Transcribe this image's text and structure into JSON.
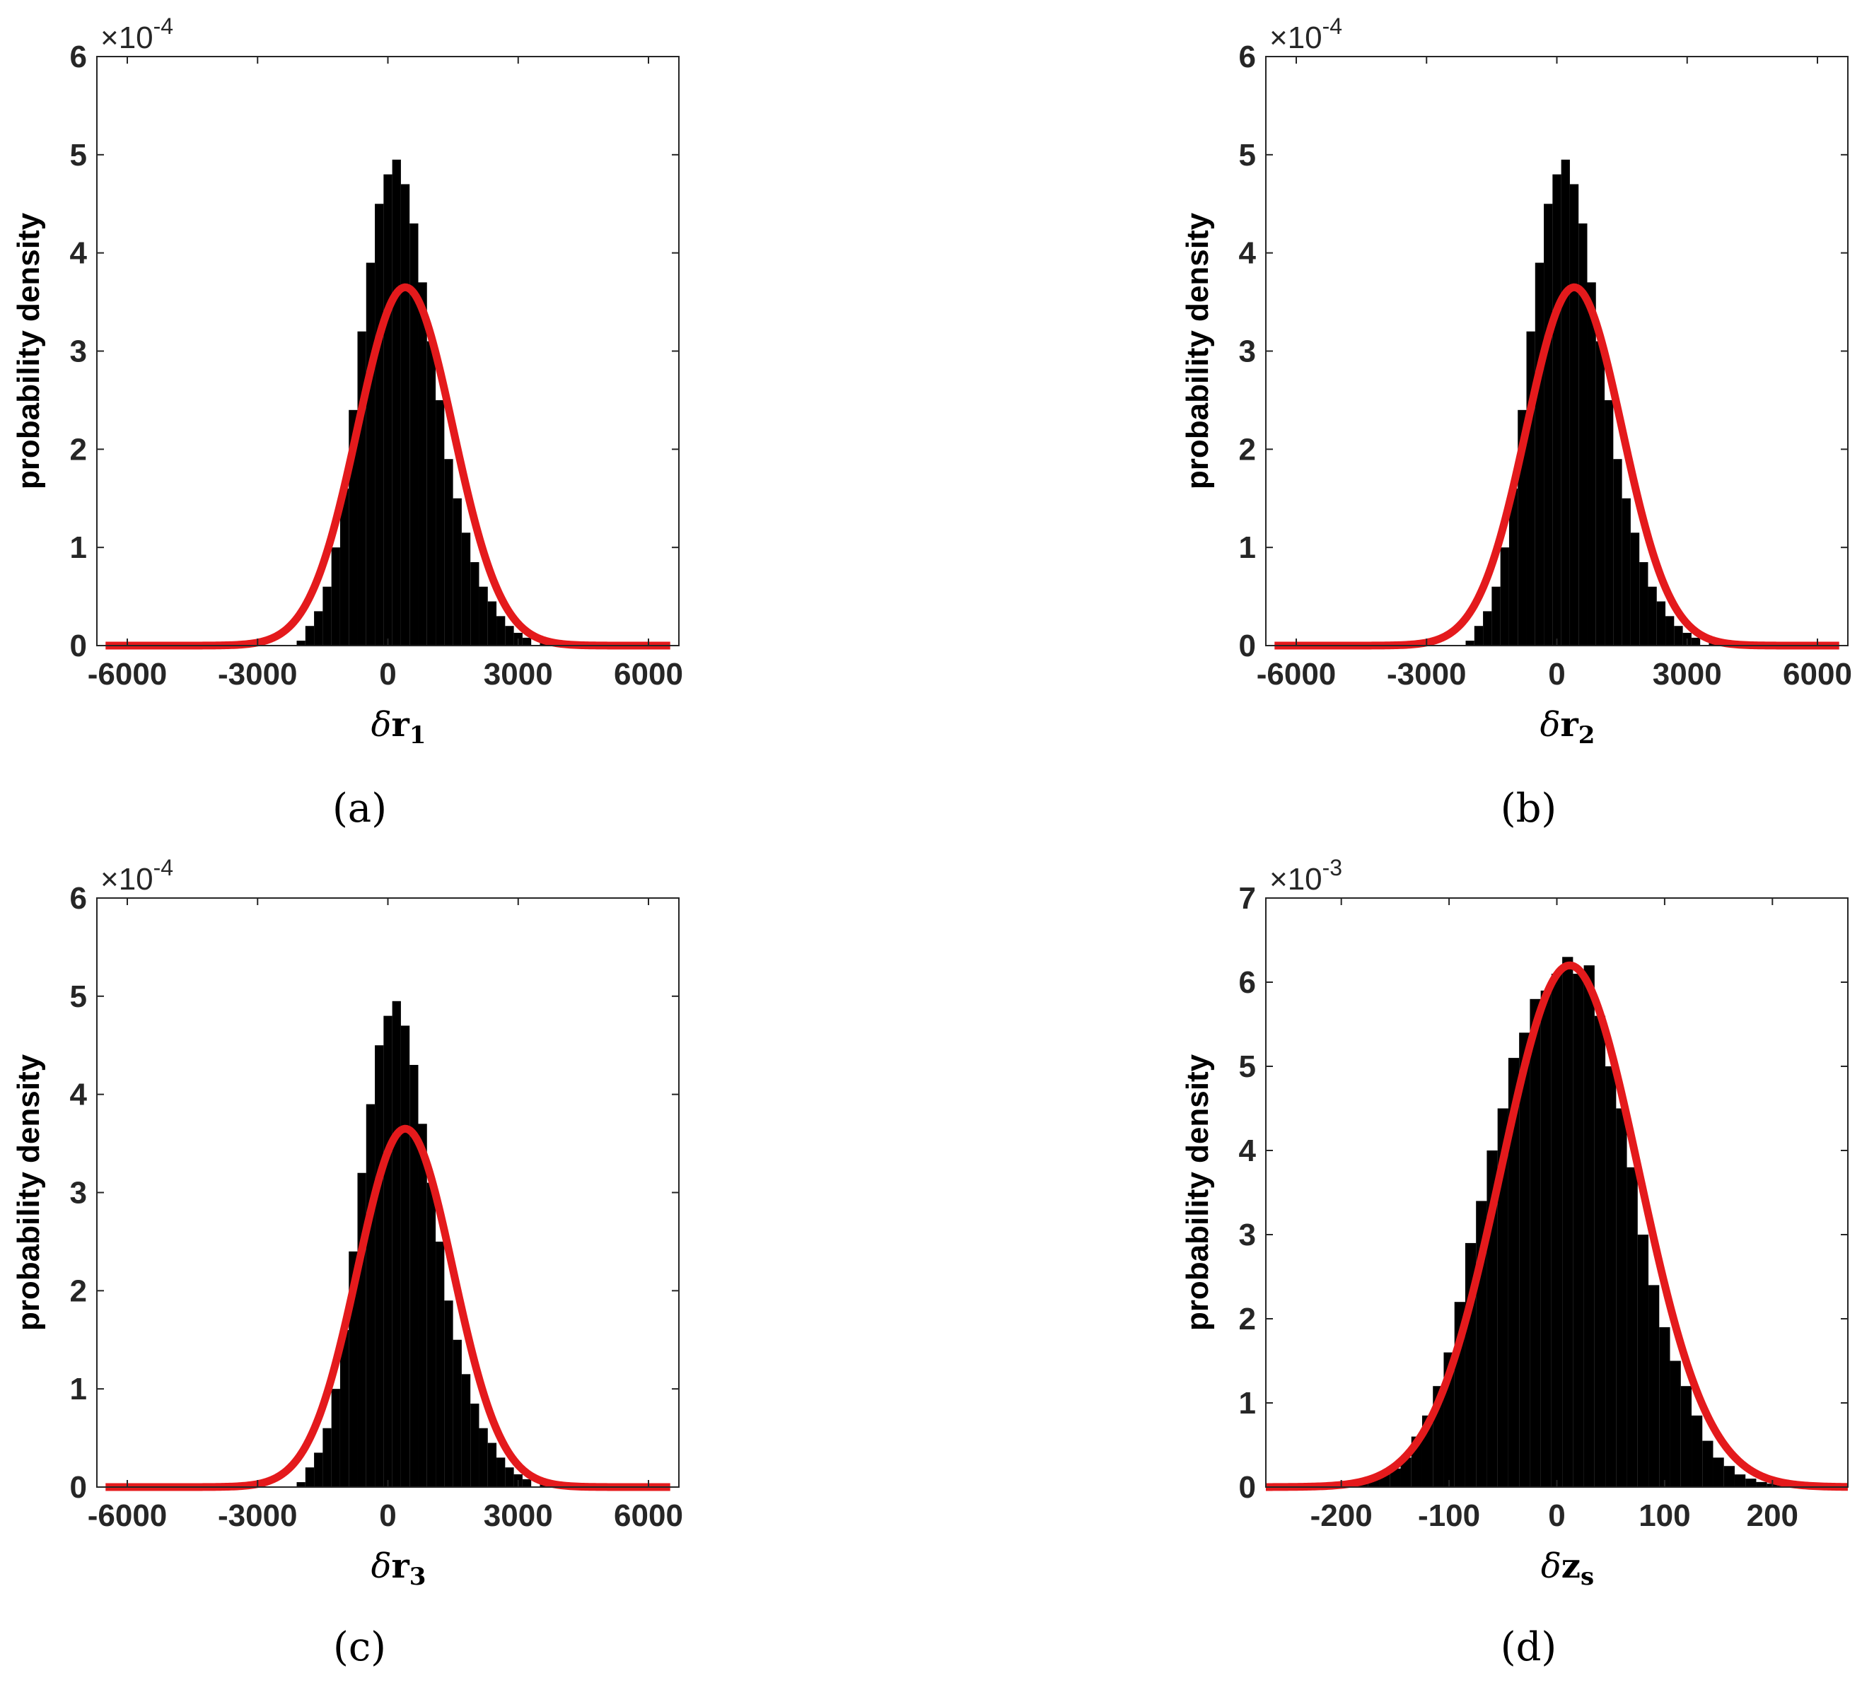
{
  "chart_data": [
    {
      "type": "bar",
      "panel_label": "(a)",
      "ylabel": "probability density",
      "xlabel_main": "δ",
      "xlabel_symbol": "r",
      "xlabel_sub": "1",
      "y_multiplier_base": "×10",
      "y_multiplier_exp": "-4",
      "xlim": [
        -6700,
        6700
      ],
      "ylim": [
        0,
        6
      ],
      "xticks": [
        -6000,
        -3000,
        0,
        3000,
        6000
      ],
      "xtick_labels": [
        "-6000",
        "-3000",
        "0",
        "3000",
        "6000"
      ],
      "yticks": [
        0,
        1,
        2,
        3,
        4,
        5,
        6
      ],
      "ytick_labels": [
        "0",
        "1",
        "2",
        "3",
        "4",
        "5",
        "6"
      ],
      "histogram": {
        "color": "#000000",
        "bins": [
          [
            -2000,
            0.05
          ],
          [
            -1800,
            0.2
          ],
          [
            -1600,
            0.35
          ],
          [
            -1400,
            0.6
          ],
          [
            -1200,
            1.0
          ],
          [
            -1000,
            1.6
          ],
          [
            -800,
            2.4
          ],
          [
            -600,
            3.2
          ],
          [
            -400,
            3.9
          ],
          [
            -200,
            4.5
          ],
          [
            0,
            4.8
          ],
          [
            200,
            4.95
          ],
          [
            400,
            4.7
          ],
          [
            600,
            4.3
          ],
          [
            800,
            3.7
          ],
          [
            1000,
            3.1
          ],
          [
            1200,
            2.5
          ],
          [
            1400,
            1.9
          ],
          [
            1600,
            1.5
          ],
          [
            1800,
            1.15
          ],
          [
            2000,
            0.85
          ],
          [
            2200,
            0.6
          ],
          [
            2400,
            0.45
          ],
          [
            2600,
            0.3
          ],
          [
            2800,
            0.2
          ],
          [
            3000,
            0.13
          ],
          [
            3200,
            0.08
          ],
          [
            3600,
            0.04
          ],
          [
            4000,
            0.02
          ],
          [
            4800,
            0.01
          ]
        ],
        "bin_width": 200
      },
      "fit": {
        "color": "#e41a1c",
        "mean": 400,
        "std": 1100,
        "amplitude": 3.65,
        "x_range": [
          -6500,
          6500
        ]
      }
    },
    {
      "type": "bar",
      "panel_label": "(b)",
      "ylabel": "probability density",
      "xlabel_main": "δ",
      "xlabel_symbol": "r",
      "xlabel_sub": "2",
      "y_multiplier_base": "×10",
      "y_multiplier_exp": "-4",
      "xlim": [
        -6700,
        6700
      ],
      "ylim": [
        0,
        6
      ],
      "xticks": [
        -6000,
        -3000,
        0,
        3000,
        6000
      ],
      "xtick_labels": [
        "-6000",
        "-3000",
        "0",
        "3000",
        "6000"
      ],
      "yticks": [
        0,
        1,
        2,
        3,
        4,
        5,
        6
      ],
      "ytick_labels": [
        "0",
        "1",
        "2",
        "3",
        "4",
        "5",
        "6"
      ],
      "histogram": {
        "color": "#000000",
        "bins": [
          [
            -2000,
            0.05
          ],
          [
            -1800,
            0.2
          ],
          [
            -1600,
            0.35
          ],
          [
            -1400,
            0.6
          ],
          [
            -1200,
            1.0
          ],
          [
            -1000,
            1.6
          ],
          [
            -800,
            2.4
          ],
          [
            -600,
            3.2
          ],
          [
            -400,
            3.9
          ],
          [
            -200,
            4.5
          ],
          [
            0,
            4.8
          ],
          [
            200,
            4.95
          ],
          [
            400,
            4.7
          ],
          [
            600,
            4.3
          ],
          [
            800,
            3.7
          ],
          [
            1000,
            3.1
          ],
          [
            1200,
            2.5
          ],
          [
            1400,
            1.9
          ],
          [
            1600,
            1.5
          ],
          [
            1800,
            1.15
          ],
          [
            2000,
            0.85
          ],
          [
            2200,
            0.6
          ],
          [
            2400,
            0.45
          ],
          [
            2600,
            0.3
          ],
          [
            2800,
            0.2
          ],
          [
            3000,
            0.13
          ],
          [
            3200,
            0.08
          ],
          [
            3600,
            0.04
          ],
          [
            4000,
            0.02
          ],
          [
            4800,
            0.01
          ]
        ],
        "bin_width": 200
      },
      "fit": {
        "color": "#e41a1c",
        "mean": 400,
        "std": 1100,
        "amplitude": 3.65,
        "x_range": [
          -6500,
          6500
        ]
      }
    },
    {
      "type": "bar",
      "panel_label": "(c)",
      "ylabel": "probability density",
      "xlabel_main": "δ",
      "xlabel_symbol": "r",
      "xlabel_sub": "3",
      "y_multiplier_base": "×10",
      "y_multiplier_exp": "-4",
      "xlim": [
        -6700,
        6700
      ],
      "ylim": [
        0,
        6
      ],
      "xticks": [
        -6000,
        -3000,
        0,
        3000,
        6000
      ],
      "xtick_labels": [
        "-6000",
        "-3000",
        "0",
        "3000",
        "6000"
      ],
      "yticks": [
        0,
        1,
        2,
        3,
        4,
        5,
        6
      ],
      "ytick_labels": [
        "0",
        "1",
        "2",
        "3",
        "4",
        "5",
        "6"
      ],
      "histogram": {
        "color": "#000000",
        "bins": [
          [
            -2000,
            0.05
          ],
          [
            -1800,
            0.2
          ],
          [
            -1600,
            0.35
          ],
          [
            -1400,
            0.6
          ],
          [
            -1200,
            1.0
          ],
          [
            -1000,
            1.6
          ],
          [
            -800,
            2.4
          ],
          [
            -600,
            3.2
          ],
          [
            -400,
            3.9
          ],
          [
            -200,
            4.5
          ],
          [
            0,
            4.8
          ],
          [
            200,
            4.95
          ],
          [
            400,
            4.7
          ],
          [
            600,
            4.3
          ],
          [
            800,
            3.7
          ],
          [
            1000,
            3.1
          ],
          [
            1200,
            2.5
          ],
          [
            1400,
            1.9
          ],
          [
            1600,
            1.5
          ],
          [
            1800,
            1.15
          ],
          [
            2000,
            0.85
          ],
          [
            2200,
            0.6
          ],
          [
            2400,
            0.45
          ],
          [
            2600,
            0.3
          ],
          [
            2800,
            0.2
          ],
          [
            3000,
            0.13
          ],
          [
            3200,
            0.08
          ],
          [
            3600,
            0.04
          ],
          [
            4000,
            0.02
          ],
          [
            4800,
            0.01
          ]
        ],
        "bin_width": 200
      },
      "fit": {
        "color": "#e41a1c",
        "mean": 400,
        "std": 1100,
        "amplitude": 3.65,
        "x_range": [
          -6500,
          6500
        ]
      }
    },
    {
      "type": "bar",
      "panel_label": "(d)",
      "ylabel": "probability density",
      "xlabel_main": "δ",
      "xlabel_symbol": "z",
      "xlabel_sub": "s",
      "y_multiplier_base": "×10",
      "y_multiplier_exp": "-3",
      "xlim": [
        -270,
        270
      ],
      "ylim": [
        0,
        7
      ],
      "xticks": [
        -200,
        -100,
        0,
        100,
        200
      ],
      "xtick_labels": [
        "-200",
        "-100",
        "0",
        "100",
        "200"
      ],
      "yticks": [
        0,
        1,
        2,
        3,
        4,
        5,
        6,
        7
      ],
      "ytick_labels": [
        "0",
        "1",
        "2",
        "3",
        "4",
        "5",
        "6",
        "7"
      ],
      "histogram": {
        "color": "#000000",
        "bins": [
          [
            -190,
            0.04
          ],
          [
            -180,
            0.06
          ],
          [
            -170,
            0.1
          ],
          [
            -160,
            0.15
          ],
          [
            -150,
            0.22
          ],
          [
            -140,
            0.35
          ],
          [
            -130,
            0.6
          ],
          [
            -120,
            0.85
          ],
          [
            -110,
            1.2
          ],
          [
            -100,
            1.6
          ],
          [
            -90,
            2.2
          ],
          [
            -80,
            2.9
          ],
          [
            -70,
            3.4
          ],
          [
            -60,
            4.0
          ],
          [
            -50,
            4.5
          ],
          [
            -40,
            5.1
          ],
          [
            -30,
            5.4
          ],
          [
            -20,
            5.8
          ],
          [
            -10,
            5.9
          ],
          [
            0,
            6.1
          ],
          [
            10,
            6.3
          ],
          [
            20,
            6.1
          ],
          [
            30,
            6.2
          ],
          [
            40,
            5.6
          ],
          [
            50,
            5.0
          ],
          [
            60,
            4.5
          ],
          [
            70,
            3.8
          ],
          [
            80,
            3.0
          ],
          [
            90,
            2.4
          ],
          [
            100,
            1.9
          ],
          [
            110,
            1.5
          ],
          [
            120,
            1.2
          ],
          [
            130,
            0.85
          ],
          [
            140,
            0.55
          ],
          [
            150,
            0.35
          ],
          [
            160,
            0.25
          ],
          [
            170,
            0.15
          ],
          [
            180,
            0.1
          ],
          [
            190,
            0.06
          ],
          [
            200,
            0.04
          ],
          [
            210,
            0.03
          ]
        ],
        "bin_width": 10
      },
      "fit": {
        "color": "#e41a1c",
        "mean": 12,
        "std": 64,
        "amplitude": 6.2,
        "x_range": [
          -270,
          270
        ]
      }
    }
  ]
}
